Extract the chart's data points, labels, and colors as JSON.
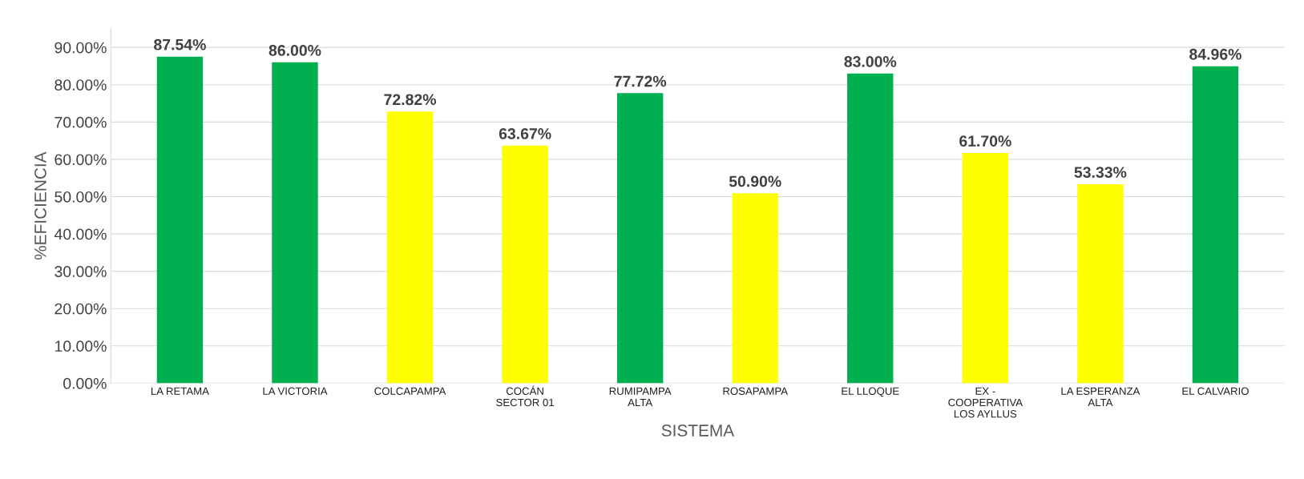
{
  "chart_data": {
    "type": "bar",
    "xlabel": "SISTEMA",
    "ylabel": "%EFICIENCIA",
    "categories": [
      "LA RETAMA",
      "LA VICTORIA",
      "COLCAPAMPA",
      "COCÁN\nSECTOR 01",
      "RUMIPAMPA\nALTA",
      "ROSAPAMPA",
      "EL LLOQUE",
      "EX -\nCOOPERATIVA\nLOS AYLLUS",
      "LA ESPERANZA\nALTA",
      "EL CALVARIO"
    ],
    "values": [
      87.54,
      86.0,
      72.82,
      63.67,
      77.72,
      50.9,
      83.0,
      61.7,
      53.33,
      84.96
    ],
    "colors": [
      "#00b050",
      "#00b050",
      "#ffff00",
      "#ffff00",
      "#00b050",
      "#ffff00",
      "#00b050",
      "#ffff00",
      "#ffff00",
      "#00b050"
    ],
    "value_labels": [
      "87.54%",
      "86.00%",
      "72.82%",
      "63.67%",
      "77.72%",
      "50.90%",
      "83.00%",
      "61.70%",
      "53.33%",
      "84.96%"
    ],
    "ylim": [
      0,
      95
    ],
    "yticks": [
      {
        "value": 0,
        "label": "0.00%"
      },
      {
        "value": 10,
        "label": "10.00%"
      },
      {
        "value": 20,
        "label": "20.00%"
      },
      {
        "value": 30,
        "label": "30.00%"
      },
      {
        "value": 40,
        "label": "40.00%"
      },
      {
        "value": 50,
        "label": "50.00%"
      },
      {
        "value": 60,
        "label": "60.00%"
      },
      {
        "value": 70,
        "label": "70.00%"
      },
      {
        "value": 80,
        "label": "80.00%"
      },
      {
        "value": 90,
        "label": "90.00%"
      }
    ],
    "grid": "y",
    "legend": false
  }
}
